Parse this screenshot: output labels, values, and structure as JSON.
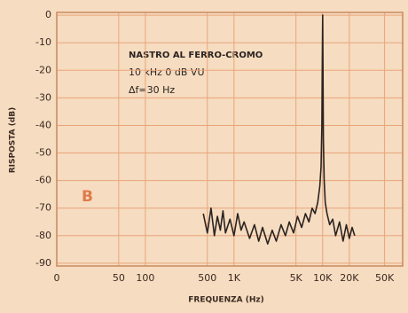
{
  "chart_data": {
    "type": "line",
    "x_label": "FREQUENZA (Hz)",
    "y_label": "RISPOSTA (dB)",
    "annotations": [
      "NASTRO AL FERRO-CROMO",
      "10 kHz 0 dB VU",
      "Δf=30 Hz",
      "B"
    ],
    "xscale": "log",
    "grid": true,
    "xlim": [
      10,
      80000
    ],
    "ylim": [
      -91,
      1
    ],
    "xticks": [
      {
        "value": 10,
        "label": "0"
      },
      50,
      100,
      500,
      {
        "value": 1000,
        "label": "1K"
      },
      {
        "value": 5000,
        "label": "5K"
      },
      {
        "value": 10000,
        "label": "10K"
      },
      {
        "value": 20000,
        "label": "20K"
      },
      {
        "value": 50000,
        "label": "50K"
      }
    ],
    "yticks": [
      0,
      -10,
      -20,
      -30,
      -40,
      -50,
      -60,
      -70,
      -80,
      -90
    ],
    "x": [
      450,
      500,
      550,
      600,
      650,
      700,
      750,
      800,
      900,
      1000,
      1100,
      1200,
      1300,
      1500,
      1700,
      1900,
      2100,
      2400,
      2700,
      3000,
      3400,
      3800,
      4200,
      4700,
      5200,
      5800,
      6400,
      7000,
      7600,
      8200,
      8800,
      9300,
      9600,
      9800,
      9900,
      10000,
      10100,
      10200,
      10400,
      10700,
      11200,
      12000,
      13000,
      14000,
      15500,
      17000,
      18500,
      20000,
      21500,
      23000
    ],
    "series": [
      {
        "color": "#2b2320",
        "values": [
          -72,
          -79,
          -70,
          -80,
          -73,
          -78,
          -71,
          -79,
          -74,
          -80,
          -72,
          -78,
          -75,
          -81,
          -76,
          -82,
          -77,
          -83,
          -78,
          -82,
          -76,
          -80,
          -75,
          -79,
          -73,
          -77,
          -72,
          -75,
          -70,
          -72,
          -68,
          -62,
          -55,
          -40,
          -20,
          0,
          -22,
          -45,
          -60,
          -68,
          -72,
          -76,
          -74,
          -80,
          -75,
          -82,
          -76,
          -81,
          -77,
          -80
        ]
      }
    ]
  }
}
